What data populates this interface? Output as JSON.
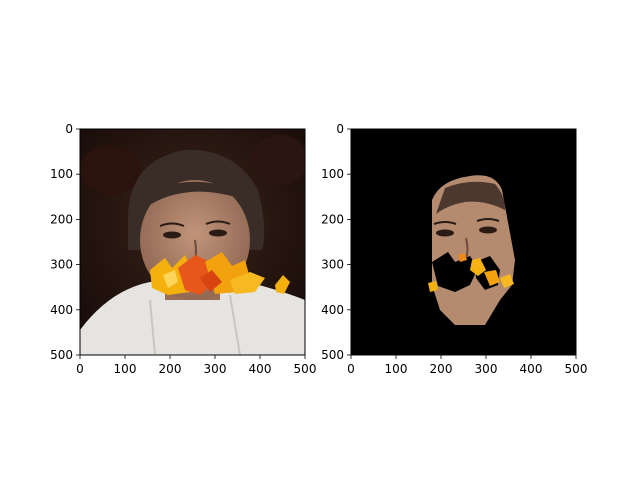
{
  "figure": {
    "background": "#ffffff",
    "panels": [
      {
        "content": "photo",
        "subject": "middle-aged man with dark hair, white collared shirt, autumn leaves overlaid over mouth and chin",
        "xlim": [
          0,
          500
        ],
        "ylim": [
          500,
          0
        ],
        "xticks": [
          "0",
          "100",
          "200",
          "300",
          "400",
          "500"
        ],
        "yticks": [
          "0",
          "100",
          "200",
          "300",
          "400",
          "500"
        ],
        "palette": {
          "background": "#1e0e0a",
          "skin": "#a77a60",
          "hair": "#3a2d28",
          "shirt": "#e8e6e2",
          "leaf_yellow": "#f4b10e",
          "leaf_orange": "#e7561b"
        }
      },
      {
        "content": "face-mask",
        "subject": "segmented face region on black background with occluding leaves partly removed",
        "xlim": [
          0,
          500
        ],
        "ylim": [
          500,
          0
        ],
        "xticks": [
          "0",
          "100",
          "200",
          "300",
          "400",
          "500"
        ],
        "yticks": [
          "0",
          "100",
          "200",
          "300",
          "400",
          "500"
        ],
        "palette": {
          "background": "#000000",
          "skin": "#b58b70",
          "leaf_yellow": "#f6b313"
        }
      }
    ]
  }
}
